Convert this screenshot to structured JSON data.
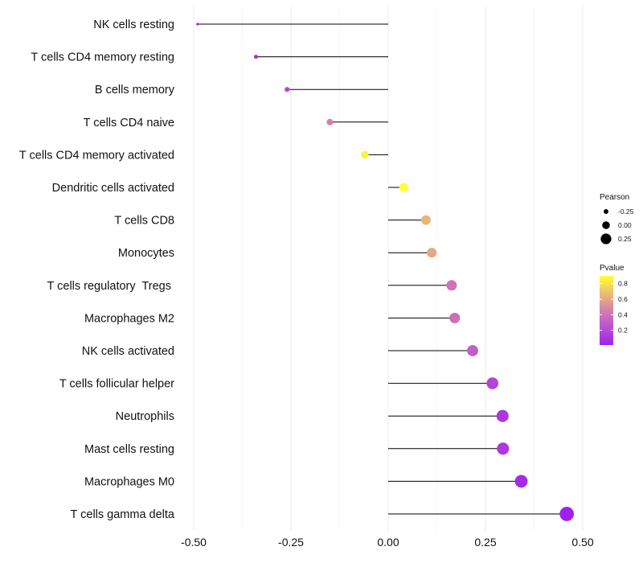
{
  "chart_data": {
    "type": "lollipop",
    "title": "",
    "xlabel": "",
    "ylabel": "",
    "xlim": [
      -0.5,
      0.5
    ],
    "x_ticks": [
      "-0.50",
      "-0.25",
      "0.00",
      "0.25",
      "0.50"
    ],
    "x_tick_values": [
      -0.5,
      -0.25,
      0.0,
      0.25,
      0.5
    ],
    "categories": [
      "NK cells resting",
      "T cells CD4 memory resting",
      "B cells memory",
      "T cells CD4 naive",
      "T cells CD4 memory activated",
      "Dendritic cells activated",
      "T cells CD8",
      "Monocytes",
      "T cells regulatory  Tregs ",
      "Macrophages M2",
      "NK cells activated",
      "T cells follicular helper",
      "Neutrophils",
      "Mast cells resting",
      "Macrophages M0",
      "T cells gamma delta"
    ],
    "pearson": [
      -0.49,
      -0.34,
      -0.26,
      -0.15,
      -0.06,
      0.04,
      0.097,
      0.112,
      0.163,
      0.171,
      0.217,
      0.268,
      0.294,
      0.295,
      0.342,
      0.459
    ],
    "pvalue": [
      0.01,
      0.05,
      0.2,
      0.45,
      0.85,
      0.9,
      0.65,
      0.6,
      0.4,
      0.38,
      0.3,
      0.18,
      0.12,
      0.12,
      0.06,
      0.01
    ],
    "size_legend": {
      "title": "Pearson",
      "labels": [
        "-0.25",
        "0.00",
        "0.25"
      ],
      "values": [
        -0.25,
        0.0,
        0.25
      ]
    },
    "color_legend": {
      "title": "Pvalue",
      "labels": [
        "0.8",
        "0.6",
        "0.4",
        "0.2"
      ],
      "values": [
        0.8,
        0.6,
        0.4,
        0.2
      ],
      "range": [
        0.01,
        0.9
      ],
      "low_color": "#a020f0",
      "mid_color": "#d57fb0",
      "high_color": "#ffff33"
    },
    "line_color": "#000000",
    "grid": true
  }
}
